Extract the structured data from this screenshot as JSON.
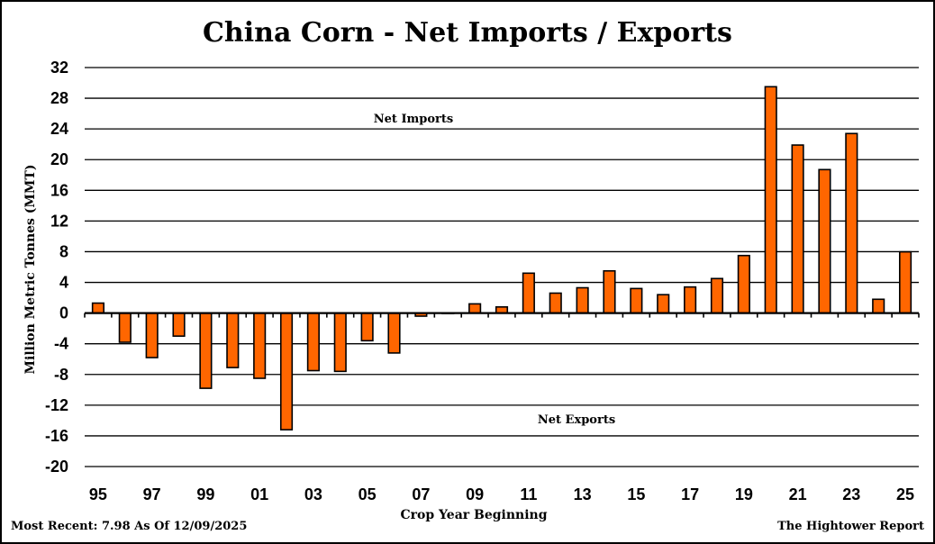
{
  "chart_data": {
    "type": "bar",
    "title": "China Corn - Net Imports / Exports",
    "xlabel": "Crop Year Beginning",
    "ylabel": "Million Metric Tonnes (MMT)",
    "ylim": [
      -20,
      32
    ],
    "yticks": [
      32,
      28,
      24,
      20,
      16,
      12,
      8,
      4,
      0,
      -4,
      -8,
      -12,
      -16,
      -20
    ],
    "grid": true,
    "categories": [
      "95",
      "96",
      "97",
      "98",
      "99",
      "00",
      "01",
      "02",
      "03",
      "04",
      "05",
      "06",
      "07",
      "08",
      "09",
      "10",
      "11",
      "12",
      "13",
      "14",
      "15",
      "16",
      "17",
      "18",
      "19",
      "20",
      "21",
      "22",
      "23",
      "24",
      "25"
    ],
    "xtick_labels": [
      "95",
      "97",
      "99",
      "01",
      "03",
      "05",
      "07",
      "09",
      "11",
      "13",
      "15",
      "17",
      "19",
      "21",
      "23",
      "25"
    ],
    "values": [
      1.3,
      -3.8,
      -5.8,
      -3.0,
      -9.8,
      -7.1,
      -8.5,
      -15.2,
      -7.5,
      -7.6,
      -3.6,
      -5.2,
      -0.4,
      0.0,
      1.2,
      0.8,
      5.2,
      2.6,
      3.3,
      5.5,
      3.2,
      2.4,
      3.4,
      4.5,
      7.5,
      29.5,
      21.9,
      18.7,
      23.4,
      1.8,
      7.98
    ],
    "bar_color": "#FF6600",
    "bar_edge_color": "#000000",
    "annotations": [
      {
        "text": "Net Imports",
        "position": "upper-left"
      },
      {
        "text": "Net Exports",
        "position": "lower-center"
      }
    ]
  },
  "footer": {
    "left": "Most Recent: 7.98 As Of 12/09/2025",
    "right": "The Hightower Report"
  }
}
